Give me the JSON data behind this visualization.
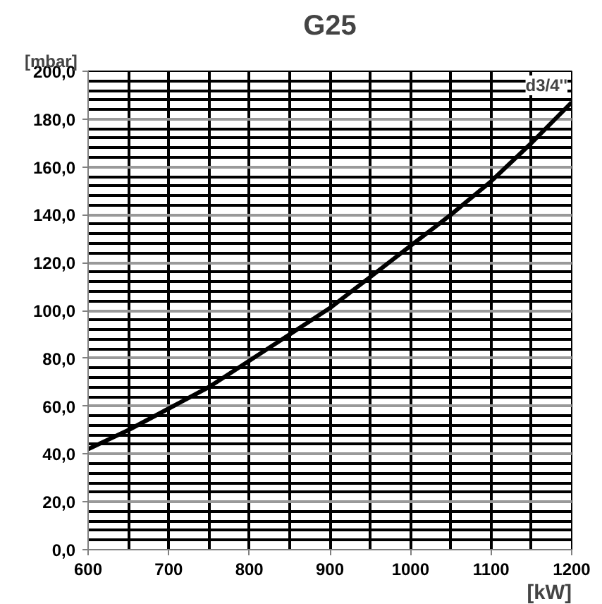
{
  "chart_data": {
    "type": "line",
    "title": "G25",
    "xlabel": "[kW]",
    "ylabel": "[mbar]",
    "x": [
      600,
      650,
      700,
      750,
      800,
      850,
      900,
      950,
      1000,
      1050,
      1100,
      1150,
      1200
    ],
    "series": [
      {
        "name": "d3/4''",
        "color": "#000000",
        "values": [
          42,
          50,
          59,
          68,
          79,
          90,
          101,
          114,
          127,
          140,
          154,
          170,
          187
        ]
      }
    ],
    "xlim": [
      600,
      1200
    ],
    "xticks": [
      600,
      700,
      800,
      900,
      1000,
      1100,
      1200
    ],
    "ylim": [
      0,
      200
    ],
    "yticks": [
      {
        "value": 0,
        "label": "0,0"
      },
      {
        "value": 20,
        "label": "20,0"
      },
      {
        "value": 40,
        "label": "40,0"
      },
      {
        "value": 60,
        "label": "60,0"
      },
      {
        "value": 80,
        "label": "80,0"
      },
      {
        "value": 100,
        "label": "100,0"
      },
      {
        "value": 120,
        "label": "120,0"
      },
      {
        "value": 140,
        "label": "140,0"
      },
      {
        "value": 160,
        "label": "160,0"
      },
      {
        "value": 180,
        "label": "180,0"
      },
      {
        "value": 200,
        "label": "200,0"
      }
    ],
    "grid": true,
    "marker": "none",
    "line_style": "solid"
  }
}
